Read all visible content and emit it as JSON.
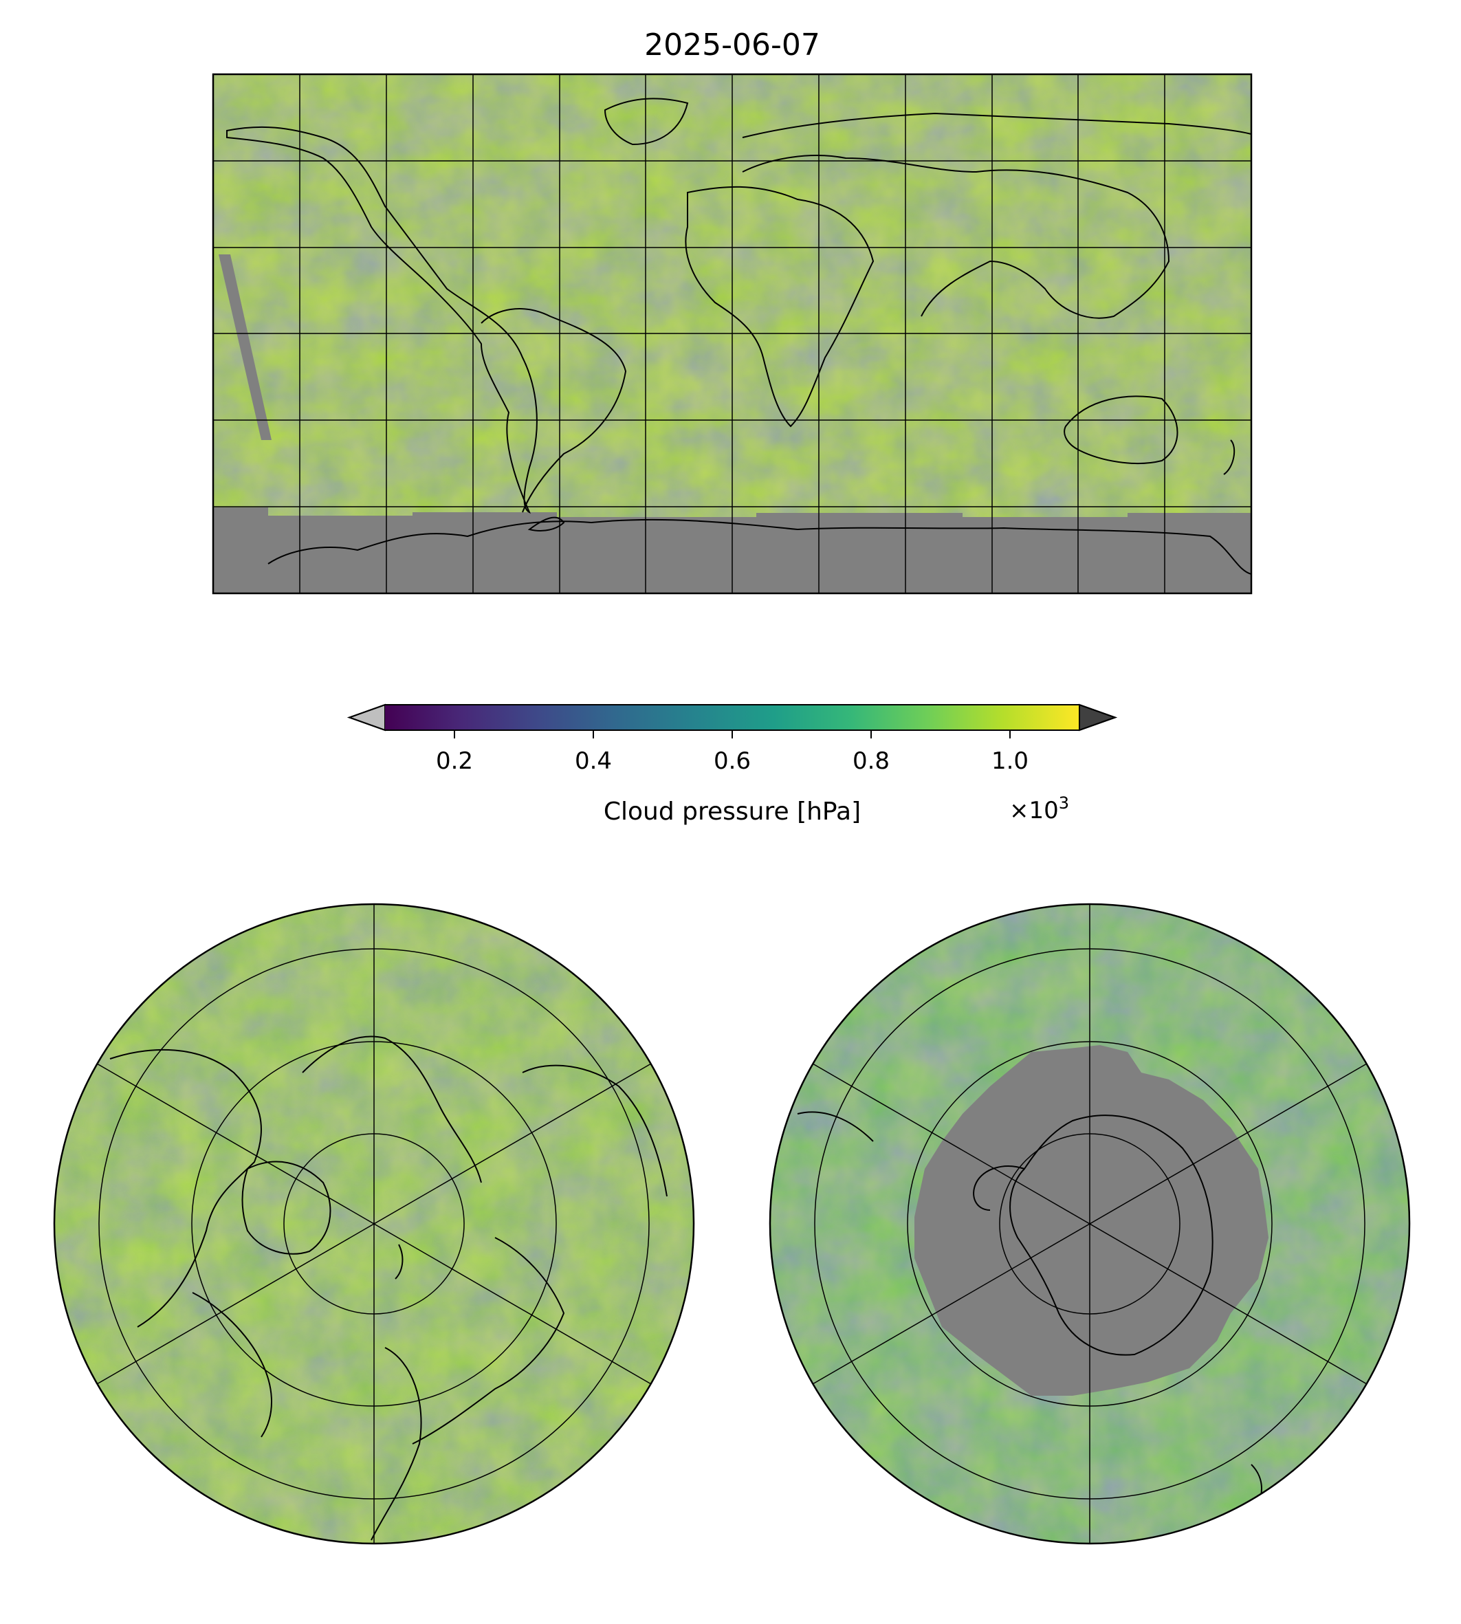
{
  "figure": {
    "title": "2025-06-07"
  },
  "colorbar": {
    "label": "Cloud pressure [hPa]",
    "ticks": [
      "0.2",
      "0.4",
      "0.6",
      "0.8",
      "1.0"
    ],
    "tick_values": [
      0.2,
      0.4,
      0.6,
      0.8,
      1.0
    ],
    "range": [
      0.1,
      1.1
    ],
    "multiplier_base": "×10",
    "multiplier_exp": "3",
    "colormap": "viridis",
    "stops": [
      "#440154",
      "#482878",
      "#3e4989",
      "#31688e",
      "#26828e",
      "#1f9e89",
      "#35b779",
      "#6ece58",
      "#b5de2b",
      "#fde725"
    ],
    "under_color": "#bfbfbf",
    "over_color": "#404040"
  },
  "maps": {
    "global": {
      "projection": "plate-carree",
      "missing_color": "#808080"
    },
    "north": {
      "projection": "north-polar-stereographic"
    },
    "south": {
      "projection": "south-polar-stereographic",
      "missing_color": "#808080"
    }
  }
}
